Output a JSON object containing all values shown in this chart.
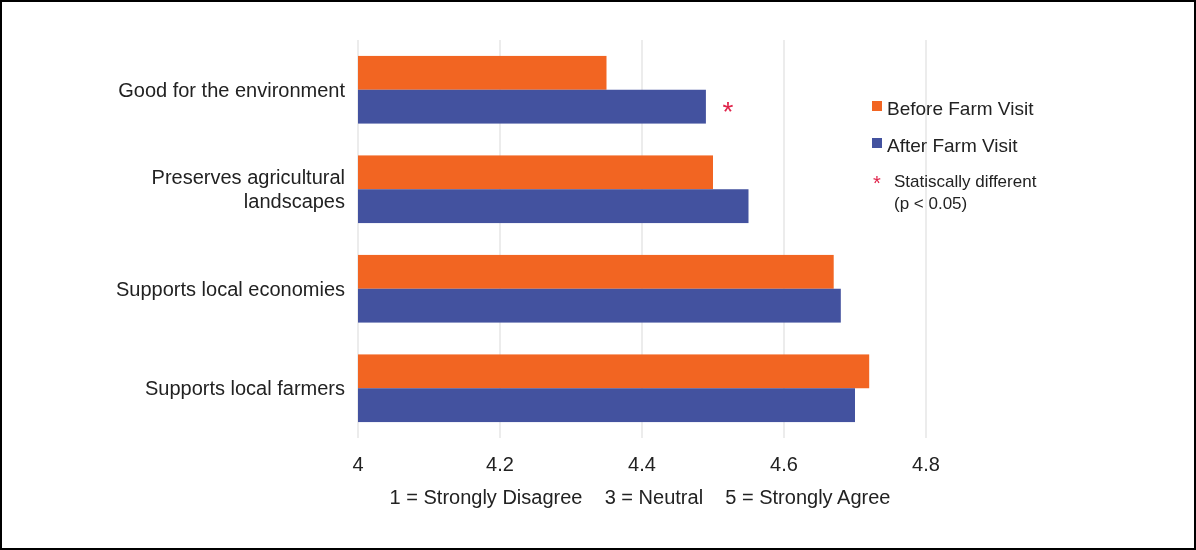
{
  "chart_data": {
    "type": "bar",
    "orientation": "horizontal",
    "categories": [
      "Good for the environment",
      "Preserves agricultural landscapes",
      "Supports local economies",
      "Supports local farmers"
    ],
    "series": [
      {
        "name": "Before Farm Visit",
        "color": "#f26522",
        "values": [
          4.35,
          4.5,
          4.67,
          4.72
        ]
      },
      {
        "name": "After Farm Visit",
        "color": "#43529f",
        "values": [
          4.49,
          4.55,
          4.68,
          4.7
        ]
      }
    ],
    "xlim": [
      4,
      4.8
    ],
    "xticks": [
      4,
      4.2,
      4.4,
      4.6,
      4.8
    ],
    "grid": "x",
    "legend": "right",
    "xlabel": "1 = Strongly Disagree    3 = Neutral    5 = Strongly Agree",
    "annotations": [
      {
        "text": "*",
        "x": 4.49,
        "y": "Good for the environment"
      },
      "* Statiscally different (p < 0.05)"
    ]
  }
}
